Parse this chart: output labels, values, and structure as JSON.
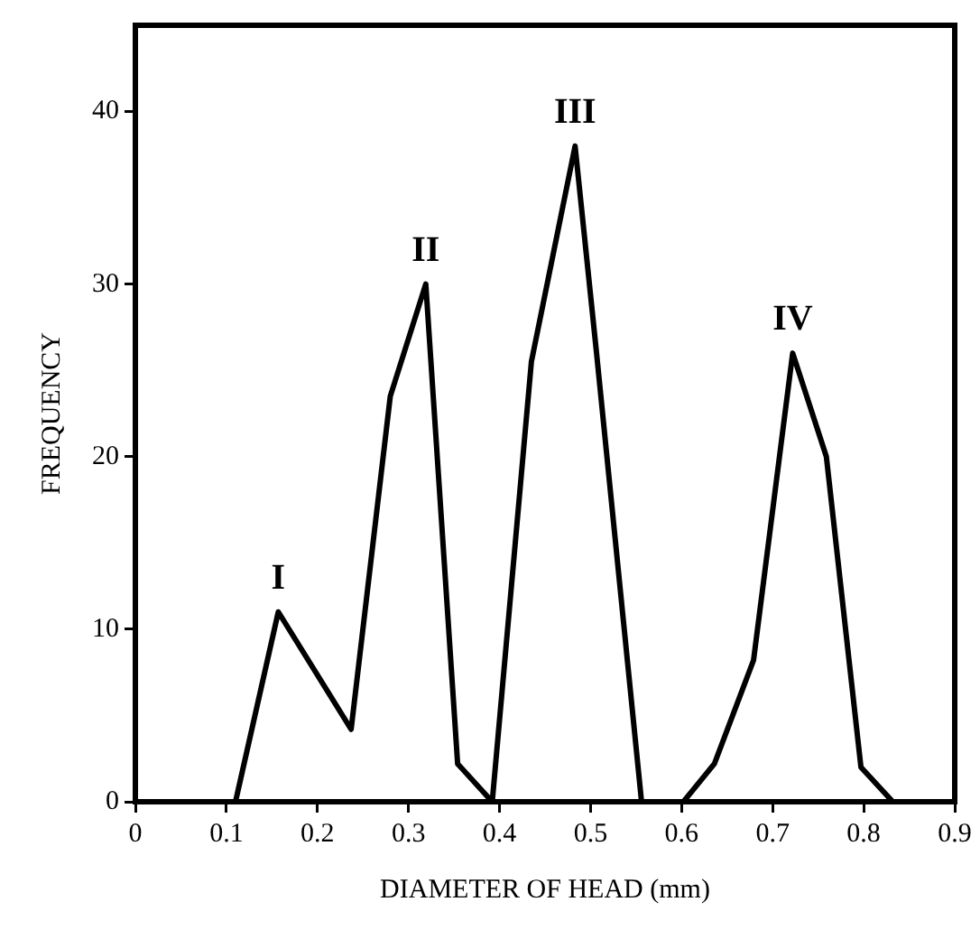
{
  "chart_data": {
    "type": "line",
    "xlabel": "DIAMETER OF HEAD (mm)",
    "ylabel": "FREQUENCY",
    "x": [
      0.11,
      0.157,
      0.237,
      0.28,
      0.319,
      0.354,
      0.392,
      0.435,
      0.483,
      0.506,
      0.556,
      0.602,
      0.636,
      0.679,
      0.722,
      0.759,
      0.797,
      0.832
    ],
    "series": [
      {
        "color": "#000000",
        "values": [
          0,
          11,
          4.2,
          23.5,
          30,
          2.2,
          0,
          25.5,
          38,
          26.3,
          0,
          0,
          2.2,
          8.2,
          26,
          20,
          2,
          0
        ]
      }
    ],
    "xlim": [
      0,
      0.9
    ],
    "xticks": [
      0,
      0.1,
      0.2,
      0.3,
      0.4,
      0.5,
      0.6,
      0.7,
      0.8,
      0.9
    ],
    "ylim": [
      0,
      45
    ],
    "yticks": [
      0,
      10,
      20,
      30,
      40
    ],
    "grid": false,
    "legend": false,
    "marker": "none",
    "line_style": "solid",
    "annotations": [
      {
        "text": "I",
        "x": 0.157,
        "y": 11
      },
      {
        "text": "II",
        "x": 0.319,
        "y": 30
      },
      {
        "text": "III",
        "x": 0.483,
        "y": 38
      },
      {
        "text": "IV",
        "x": 0.722,
        "y": 26
      }
    ]
  }
}
